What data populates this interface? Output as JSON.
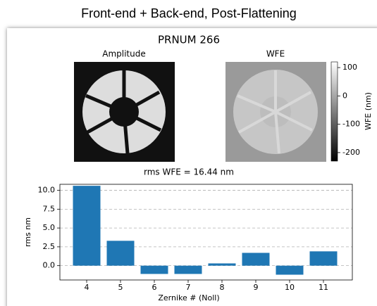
{
  "header": {
    "title": "Front-end + Back-end, Post-Flattening"
  },
  "figure_title": "PRNUM 266",
  "images": [
    {
      "title": "Amplitude"
    },
    {
      "title": "WFE"
    }
  ],
  "colorbar": {
    "label": "WFE (nm)",
    "lim": [
      -230,
      120
    ],
    "ticks": [
      100,
      0,
      -100,
      -200
    ]
  },
  "chart_data": {
    "type": "bar",
    "title": "rms WFE = 16.44 nm",
    "x_label": "Zernike # (Noll)",
    "y_label": "rms nm",
    "categories": [
      "4",
      "5",
      "6",
      "7",
      "8",
      "9",
      "10",
      "11"
    ],
    "values": [
      10.6,
      3.3,
      -1.1,
      -1.1,
      0.3,
      1.7,
      -1.2,
      1.9
    ],
    "color": "#1f77b4",
    "ylim": [
      -1.9,
      10.8
    ],
    "yticks": [
      {
        "value": 0,
        "label": "0.0"
      },
      2.5,
      {
        "value": 5,
        "label": "5.0"
      },
      7.5,
      {
        "value": 10,
        "label": "10.0"
      }
    ],
    "grid": true
  }
}
